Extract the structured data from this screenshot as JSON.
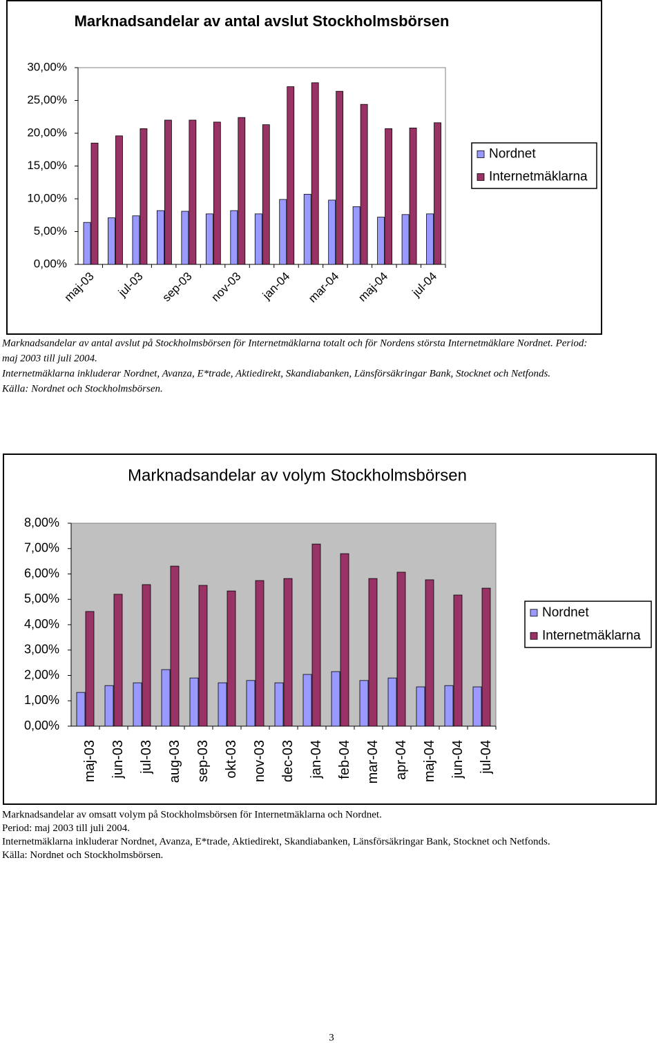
{
  "chart_data": [
    {
      "type": "bar",
      "title": "Marknadsandelar av antal avslut Stockholmsbörsen",
      "categories": [
        "maj-03",
        null,
        "jul-03",
        null,
        "sep-03",
        null,
        "nov-03",
        null,
        "jan-04",
        null,
        "mar-04",
        null,
        "maj-04",
        null,
        "jul-04"
      ],
      "series": [
        {
          "name": "Nordnet",
          "color": "#9999ff",
          "values": [
            6.4,
            7.1,
            7.4,
            8.2,
            8.1,
            7.7,
            8.2,
            7.7,
            9.9,
            10.7,
            9.8,
            8.8,
            7.2,
            7.6,
            7.7
          ]
        },
        {
          "name": "Internetmäklarna",
          "color": "#993366",
          "values": [
            18.5,
            19.6,
            20.7,
            22.0,
            22.0,
            21.7,
            22.4,
            21.3,
            27.1,
            27.7,
            26.4,
            24.4,
            20.7,
            20.8,
            21.6
          ]
        }
      ],
      "ylim": [
        0,
        30
      ],
      "yticks": [
        {
          "value": 0,
          "label": "0,00%"
        },
        {
          "value": 5,
          "label": "5,00%"
        },
        {
          "value": 10,
          "label": "10,00%"
        },
        {
          "value": 15,
          "label": "15,00%"
        },
        {
          "value": 20,
          "label": "20,00%"
        },
        {
          "value": 25,
          "label": "25,00%"
        },
        {
          "value": 30,
          "label": "30,00%"
        }
      ],
      "grid": false,
      "legend": "right",
      "plot_background": "#ffffff"
    },
    {
      "type": "bar",
      "title": "Marknadsandelar av volym Stockholmsbörsen",
      "categories": [
        "maj-03",
        "jun-03",
        "jul-03",
        "aug-03",
        "sep-03",
        "okt-03",
        "nov-03",
        "dec-03",
        "jan-04",
        "feb-04",
        "mar-04",
        "apr-04",
        "maj-04",
        "jun-04",
        "jul-04"
      ],
      "series": [
        {
          "name": "Nordnet",
          "color": "#9999ff",
          "values": [
            1.33,
            1.6,
            1.71,
            2.23,
            1.9,
            1.71,
            1.8,
            1.71,
            2.04,
            2.15,
            1.8,
            1.9,
            1.55,
            1.6,
            1.55
          ]
        },
        {
          "name": "Internetmäklarna",
          "color": "#993366",
          "values": [
            4.52,
            5.2,
            5.58,
            6.31,
            5.55,
            5.33,
            5.74,
            5.82,
            7.18,
            6.8,
            5.82,
            6.07,
            5.77,
            5.17,
            5.44
          ]
        }
      ],
      "ylim": [
        0,
        8
      ],
      "yticks": [
        {
          "value": 0,
          "label": "0,00%"
        },
        {
          "value": 1,
          "label": "1,00%"
        },
        {
          "value": 2,
          "label": "2,00%"
        },
        {
          "value": 3,
          "label": "3,00%"
        },
        {
          "value": 4,
          "label": "4,00%"
        },
        {
          "value": 5,
          "label": "5,00%"
        },
        {
          "value": 6,
          "label": "6,00%"
        },
        {
          "value": 7,
          "label": "7,00%"
        },
        {
          "value": 8,
          "label": "8,00%"
        }
      ],
      "grid": false,
      "legend": "right",
      "plot_background": "#c0c0c0"
    }
  ],
  "captions": [
    [
      "Marknadsandelar av antal avslut på Stockholmsbörsen för Internetmäklarna totalt och för Nordens största Internetmäklare Nordnet. Period:",
      "maj 2003 till juli 2004.",
      "Internetmäklarna inkluderar Nordnet, Avanza, E*trade, Aktiedirekt, Skandiabanken, Länsförsäkringar Bank, Stocknet och Netfonds.",
      "Källa:  Nordnet och Stockholmsbörsen."
    ],
    [
      "Marknadsandelar av omsatt volym på Stockholmsbörsen för Internetmäklarna och Nordnet.",
      "Period: maj 2003 till juli 2004.",
      "Internetmäklarna inkluderar Nordnet, Avanza, E*trade, Aktiedirekt, Skandiabanken, Länsförsäkringar Bank, Stocknet och Netfonds.",
      "Källa:  Nordnet och Stockholmsbörsen."
    ]
  ],
  "page_number": "3"
}
